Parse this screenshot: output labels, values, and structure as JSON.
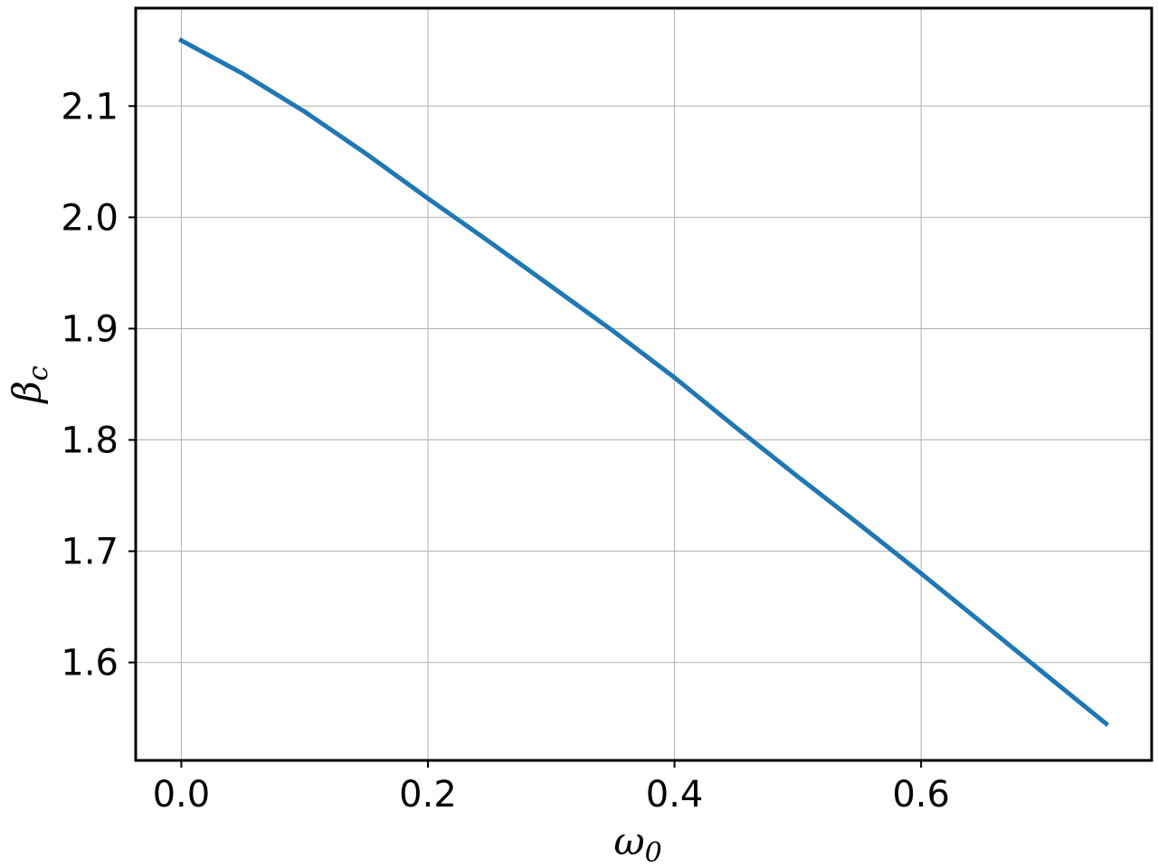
{
  "chart_data": {
    "type": "line",
    "xlabel": {
      "main": "ω",
      "sub": "0"
    },
    "ylabel": {
      "main": "β",
      "sub": "c"
    },
    "xlim": [
      -0.037,
      0.787
    ],
    "ylim": [
      1.512,
      2.188
    ],
    "x_ticks": [
      0.0,
      0.2,
      0.4,
      0.6
    ],
    "x_tick_labels": [
      "0.0",
      "0.2",
      "0.4",
      "0.6"
    ],
    "y_ticks": [
      1.6,
      1.7,
      1.8,
      1.9,
      2.0,
      2.1
    ],
    "y_tick_labels": [
      "1.6",
      "1.7",
      "1.8",
      "1.9",
      "2.0",
      "2.1"
    ],
    "grid": true,
    "series": [
      {
        "color": "#1f77b4",
        "x": [
          0.0,
          0.05,
          0.1,
          0.15,
          0.2,
          0.25,
          0.3,
          0.35,
          0.4,
          0.45,
          0.5,
          0.55,
          0.6,
          0.65,
          0.7,
          0.75
        ],
        "y": [
          2.159,
          2.129,
          2.095,
          2.057,
          2.017,
          1.978,
          1.938,
          1.898,
          1.856,
          1.811,
          1.767,
          1.724,
          1.68,
          1.635,
          1.59,
          1.545
        ]
      }
    ]
  }
}
